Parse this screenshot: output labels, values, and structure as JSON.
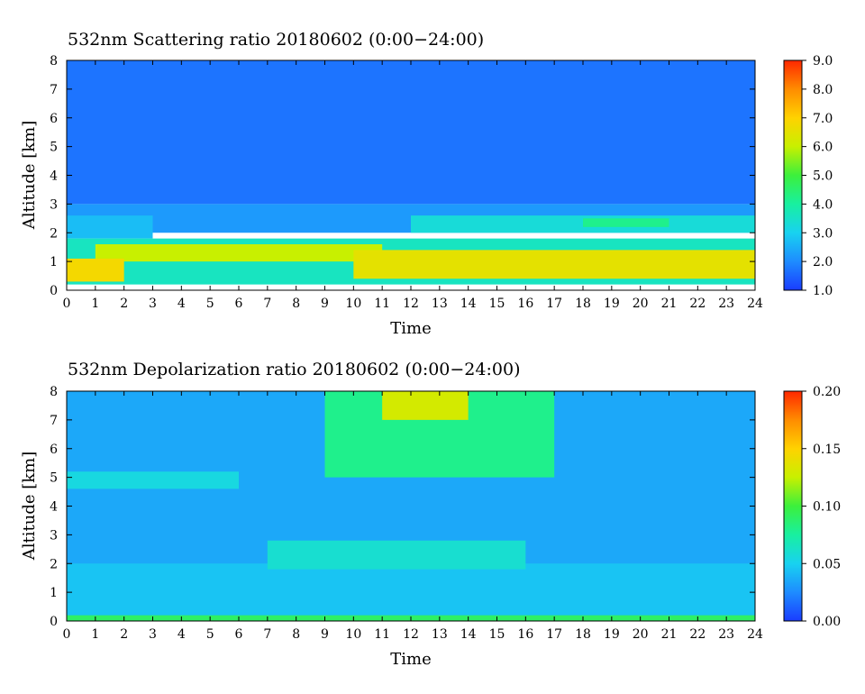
{
  "chart_data": [
    {
      "type": "heatmap",
      "title": "532nm Scattering ratio  20180602 (0:00−24:00)",
      "xlabel": "Time",
      "ylabel": "Altitude [km]",
      "xlim": [
        0,
        24
      ],
      "ylim": [
        0,
        8
      ],
      "x_ticks": [
        "0",
        "1",
        "2",
        "3",
        "4",
        "5",
        "6",
        "7",
        "8",
        "9",
        "10",
        "11",
        "12",
        "13",
        "14",
        "15",
        "16",
        "17",
        "18",
        "19",
        "20",
        "21",
        "22",
        "23",
        "24"
      ],
      "y_ticks": [
        "0",
        "1",
        "2",
        "3",
        "4",
        "5",
        "6",
        "7",
        "8"
      ],
      "colorbar": {
        "min": 1.0,
        "max": 9.0,
        "ticks": [
          "1.0",
          "2.0",
          "3.0",
          "4.0",
          "5.0",
          "6.0",
          "7.0",
          "8.0",
          "9.0"
        ],
        "colors": [
          "#1a3cff",
          "#1e8cff",
          "#18d2f0",
          "#18f0a0",
          "#3cf03c",
          "#c8f000",
          "#ffd200",
          "#ff8c00",
          "#ff2800"
        ]
      },
      "description_layers": [
        {
          "x": [
            0,
            24
          ],
          "alt": [
            3.0,
            8.0
          ],
          "value": 1.7
        },
        {
          "x": [
            0,
            24
          ],
          "alt": [
            2.0,
            3.0
          ],
          "value": 2.2
        },
        {
          "x": [
            0,
            3
          ],
          "alt": [
            1.8,
            2.6
          ],
          "value": 2.7
        },
        {
          "x": [
            12,
            24
          ],
          "alt": [
            2.0,
            2.6
          ],
          "value": 3.3
        },
        {
          "x": [
            18,
            21
          ],
          "alt": [
            2.2,
            2.5
          ],
          "value": 4.2
        },
        {
          "x": [
            0,
            24
          ],
          "alt": [
            0.2,
            1.8
          ],
          "value": 3.6
        },
        {
          "x": [
            1,
            11
          ],
          "alt": [
            1.0,
            1.6
          ],
          "value": 6.0
        },
        {
          "x": [
            10,
            24
          ],
          "alt": [
            0.4,
            1.4
          ],
          "value": 6.5
        },
        {
          "x": [
            0,
            2
          ],
          "alt": [
            0.3,
            1.1
          ],
          "value": 6.8
        }
      ]
    },
    {
      "type": "heatmap",
      "title": "532nm Depolarization ratio  20180602 (0:00−24:00)",
      "xlabel": "Time",
      "ylabel": "Altitude [km]",
      "xlim": [
        0,
        24
      ],
      "ylim": [
        0,
        8
      ],
      "x_ticks": [
        "0",
        "1",
        "2",
        "3",
        "4",
        "5",
        "6",
        "7",
        "8",
        "9",
        "10",
        "11",
        "12",
        "13",
        "14",
        "15",
        "16",
        "17",
        "18",
        "19",
        "20",
        "21",
        "22",
        "23",
        "24"
      ],
      "y_ticks": [
        "0",
        "1",
        "2",
        "3",
        "4",
        "5",
        "6",
        "7",
        "8"
      ],
      "colorbar": {
        "min": 0.0,
        "max": 0.2,
        "ticks": [
          "0.00",
          "0.05",
          "0.10",
          "0.15",
          "0.20"
        ],
        "colors": [
          "#1a3cff",
          "#1e8cff",
          "#18d2f0",
          "#18f0a0",
          "#3cf03c",
          "#c8f000",
          "#ffd200",
          "#ff8c00",
          "#ff2800"
        ]
      },
      "description_layers": [
        {
          "x": [
            0,
            24
          ],
          "alt": [
            0.0,
            8.0
          ],
          "value": 0.035
        },
        {
          "x": [
            0,
            24
          ],
          "alt": [
            0.2,
            2.0
          ],
          "value": 0.045
        },
        {
          "x": [
            7,
            16
          ],
          "alt": [
            1.8,
            2.8
          ],
          "value": 0.06
        },
        {
          "x": [
            0,
            6
          ],
          "alt": [
            4.6,
            5.2
          ],
          "value": 0.055
        },
        {
          "x": [
            9,
            17
          ],
          "alt": [
            5.0,
            8.0
          ],
          "value": 0.08
        },
        {
          "x": [
            11,
            14
          ],
          "alt": [
            7.0,
            8.0
          ],
          "value": 0.13
        },
        {
          "x": [
            0,
            24
          ],
          "alt": [
            0.0,
            0.2
          ],
          "value": 0.09
        }
      ]
    }
  ]
}
